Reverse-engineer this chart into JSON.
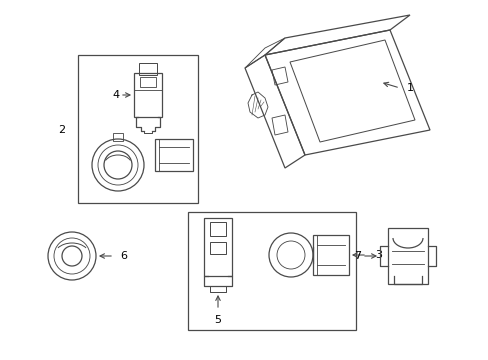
{
  "background_color": "#ffffff",
  "line_color": "#4a4a4a",
  "label_color": "#000000",
  "fig_width": 4.89,
  "fig_height": 3.6,
  "dpi": 100
}
